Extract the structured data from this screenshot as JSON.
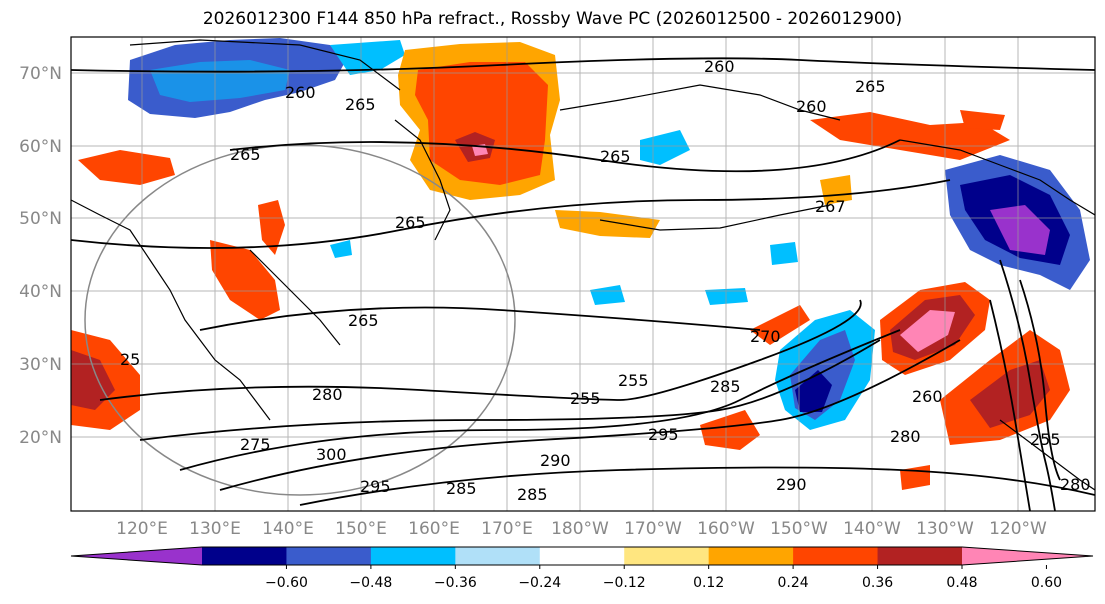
{
  "title": "2026012300 F144 850 hPa refract., Rossby Wave PC (2026012500 - 2026012900)",
  "lat_labels": [
    "70°N",
    "60°N",
    "50°N",
    "40°N",
    "30°N",
    "20°N"
  ],
  "lon_labels": [
    "120°E",
    "130°E",
    "140°E",
    "150°E",
    "160°E",
    "170°E",
    "180°W",
    "170°W",
    "160°W",
    "150°W",
    "140°W",
    "130°W",
    "120°W"
  ],
  "colorbar": {
    "colors": [
      "#9932cc",
      "#00008b",
      "#3a5ccc",
      "#00bfff",
      "#b0e0f8",
      "#ffffff",
      "#ffe680",
      "#ffa500",
      "#ff4500",
      "#b22222",
      "#ff85b5"
    ],
    "tick_labels": [
      "−0.60",
      "−0.48",
      "−0.36",
      "−0.24",
      "−0.12",
      "0.12",
      "0.24",
      "0.36",
      "0.48",
      "0.60"
    ]
  },
  "contour_labels": [
    "260",
    "260",
    "265",
    "265",
    "260",
    "265",
    "265",
    "267",
    "265",
    "270",
    "280",
    "275",
    "300",
    "295",
    "285",
    "285",
    "280",
    "290",
    "290",
    "255",
    "255",
    "295",
    "260",
    "285",
    "25",
    "255",
    "280",
    "265"
  ]
}
